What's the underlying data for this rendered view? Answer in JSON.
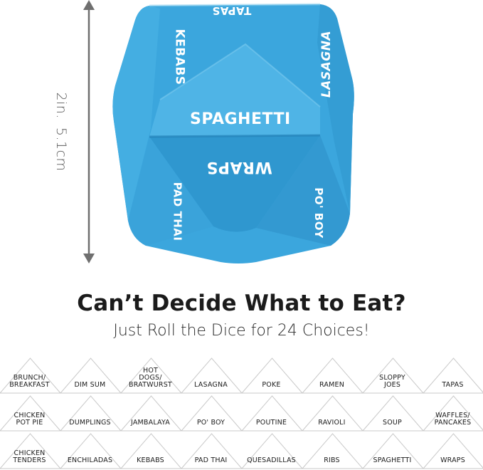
{
  "measurement": {
    "inches": "2in.",
    "centimeters": "5.1cm",
    "arrow_color": "#6f6f6f"
  },
  "dice": {
    "color_main": "#3ba6dd",
    "color_dark": "#2a8fc7",
    "color_light": "#5cbbe8",
    "faces": {
      "center": "SPAGHETTI",
      "bottom": "WRAPS",
      "left": "KEBABS",
      "right": "LASAGNA",
      "lower_left": "PAD THAI",
      "lower_right": "PO' BOY",
      "top": "TAPAS"
    }
  },
  "headline": "Can’t Decide What to Eat?",
  "subheadline": "Just Roll the Dice for 24 Choices!",
  "choices": [
    [
      "BRUNCH/",
      "BREAKFAST"
    ],
    [
      "DIM SUM"
    ],
    [
      "HOT",
      "DOGS/",
      "BRATWURST"
    ],
    [
      "LASAGNA"
    ],
    [
      "POKE"
    ],
    [
      "RAMEN"
    ],
    [
      "SLOPPY",
      "JOES"
    ],
    [
      "TAPAS"
    ],
    [
      "CHICKEN",
      "POT PIE"
    ],
    [
      "DUMPLINGS"
    ],
    [
      "JAMBALAYA"
    ],
    [
      "PO' BOY"
    ],
    [
      "POUTINE"
    ],
    [
      "RAVIOLI"
    ],
    [
      "SOUP"
    ],
    [
      "WAFFLES/",
      "PANCAKES"
    ],
    [
      "CHICKEN",
      "TENDERS"
    ],
    [
      "ENCHILADAS"
    ],
    [
      "KEBABS"
    ],
    [
      "PAD THAI"
    ],
    [
      "QUESADILLAS"
    ],
    [
      "RIBS"
    ],
    [
      "SPAGHETTI"
    ],
    [
      "WRAPS"
    ]
  ]
}
